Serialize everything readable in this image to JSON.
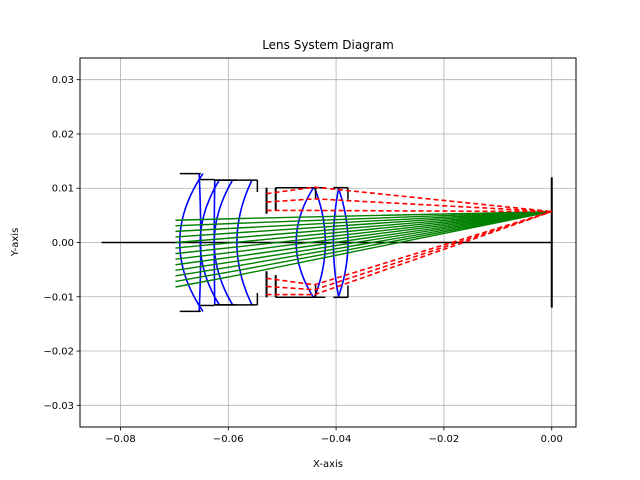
{
  "chart_data": {
    "type": "diagram",
    "title": "Lens System Diagram",
    "xlabel": "X-axis",
    "ylabel": "Y-axis",
    "xlim": [
      -0.0875,
      0.0045
    ],
    "ylim": [
      -0.034,
      0.034
    ],
    "grid": true,
    "xticks": [
      {
        "value": -0.08,
        "label": "−0.08"
      },
      {
        "value": -0.06,
        "label": "−0.06"
      },
      {
        "value": -0.04,
        "label": "−0.04"
      },
      {
        "value": -0.02,
        "label": "−0.02"
      },
      {
        "value": 0.0,
        "label": "0.00"
      }
    ],
    "yticks": [
      {
        "value": 0.03,
        "label": "0.03"
      },
      {
        "value": 0.02,
        "label": "0.02"
      },
      {
        "value": 0.01,
        "label": "0.01"
      },
      {
        "value": 0.0,
        "label": "0.00"
      },
      {
        "value": -0.01,
        "label": "−0.01"
      },
      {
        "value": -0.02,
        "label": "−0.02"
      },
      {
        "value": -0.03,
        "label": "−0.03"
      }
    ],
    "colors": {
      "lens": "#0000ff",
      "mount": "#000000",
      "axis": "#000000",
      "ray_pass": "#008000",
      "ray_blocked": "#ff0000",
      "grid": "#b0b0b0"
    },
    "optical_axis": {
      "x1": -0.0835,
      "x2": 0.0,
      "y": 0.0
    },
    "image_plane": {
      "x": 0.0,
      "y1": -0.012,
      "y2": 0.012
    },
    "focus": {
      "x": 0.0,
      "y": 0.0057
    },
    "lens_elements": [
      {
        "name": "L1",
        "front_x": -0.069,
        "back_x": -0.0651,
        "front_sag": 0.0043,
        "back_sag": -0.0003,
        "half_height": 0.0127
      },
      {
        "name": "L2",
        "front_x": -0.0652,
        "back_x": -0.0626,
        "front_sag": 0.0036,
        "back_sag": 0.0001,
        "half_height": 0.0116
      },
      {
        "name": "L3",
        "front_x": -0.0626,
        "back_x": -0.0584,
        "front_sag": 0.0034,
        "back_sag": 0.0028,
        "half_height": 0.0115
      },
      {
        "name": "L4",
        "front_x": -0.0474,
        "back_x": -0.042,
        "front_sag": 0.0032,
        "back_sag": -0.002,
        "half_height": 0.0101
      },
      {
        "name": "L5",
        "front_x": -0.0405,
        "back_x": -0.0378,
        "front_sag": 0.001,
        "back_sag": -0.0018,
        "half_height": 0.0101
      }
    ],
    "mounts": [
      {
        "name": "barrel-1",
        "x1": -0.0626,
        "x2": -0.0546,
        "half_height": 0.0115
      },
      {
        "name": "barrel-2",
        "x1": -0.0512,
        "x2": -0.0438,
        "half_height": 0.0101
      },
      {
        "name": "barrel-3",
        "x1": -0.0405,
        "x2": -0.0378,
        "half_height": 0.0101
      }
    ],
    "stops": [
      {
        "name": "stop-1",
        "x": -0.0529,
        "outer": 0.0101,
        "inner": 0.0053
      },
      {
        "name": "stop-2",
        "x": -0.0512,
        "outer": 0.0101,
        "inner": 0.006
      }
    ],
    "rays_passing": {
      "count": 13,
      "start_x": -0.0698,
      "y_top": 0.0041,
      "y_bottom": -0.0082,
      "bend_x": -0.0586,
      "bend_y_top": 0.0044,
      "bend_y_bottom": -0.0061
    },
    "rays_blocked": {
      "count": 6,
      "start_x": -0.0529,
      "top_y_top": 0.009,
      "top_y_bottom": 0.0059,
      "bottom_y_top": -0.0066,
      "bottom_y_bottom": -0.0096
    }
  }
}
